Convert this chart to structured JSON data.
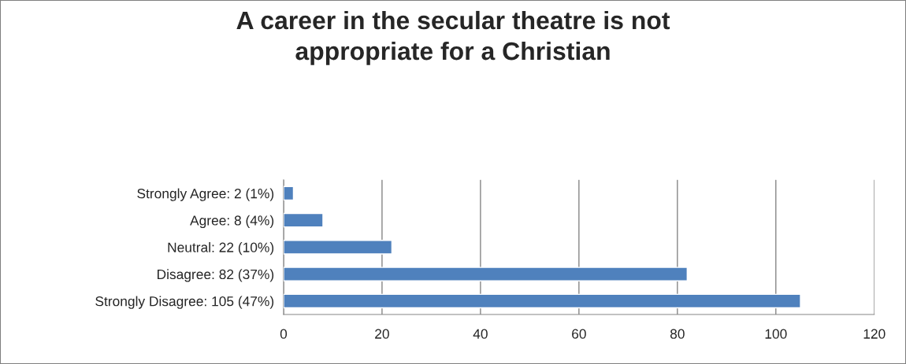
{
  "chart_data": {
    "type": "bar",
    "orientation": "horizontal",
    "title": "A career in the secular theatre is not\nappropriate for a Christian",
    "categories": [
      "Strongly Agree: 2 (1%)",
      "Agree: 8 (4%)",
      "Neutral: 22 (10%)",
      "Disagree: 82 (37%)",
      "Strongly Disagree: 105 (47%)"
    ],
    "values": [
      2,
      8,
      22,
      82,
      105
    ],
    "color": "#4f81bd",
    "xlim": [
      0,
      120
    ],
    "xticks": [
      0,
      20,
      40,
      60,
      80,
      100,
      120
    ],
    "grid": "x",
    "legend": false
  }
}
